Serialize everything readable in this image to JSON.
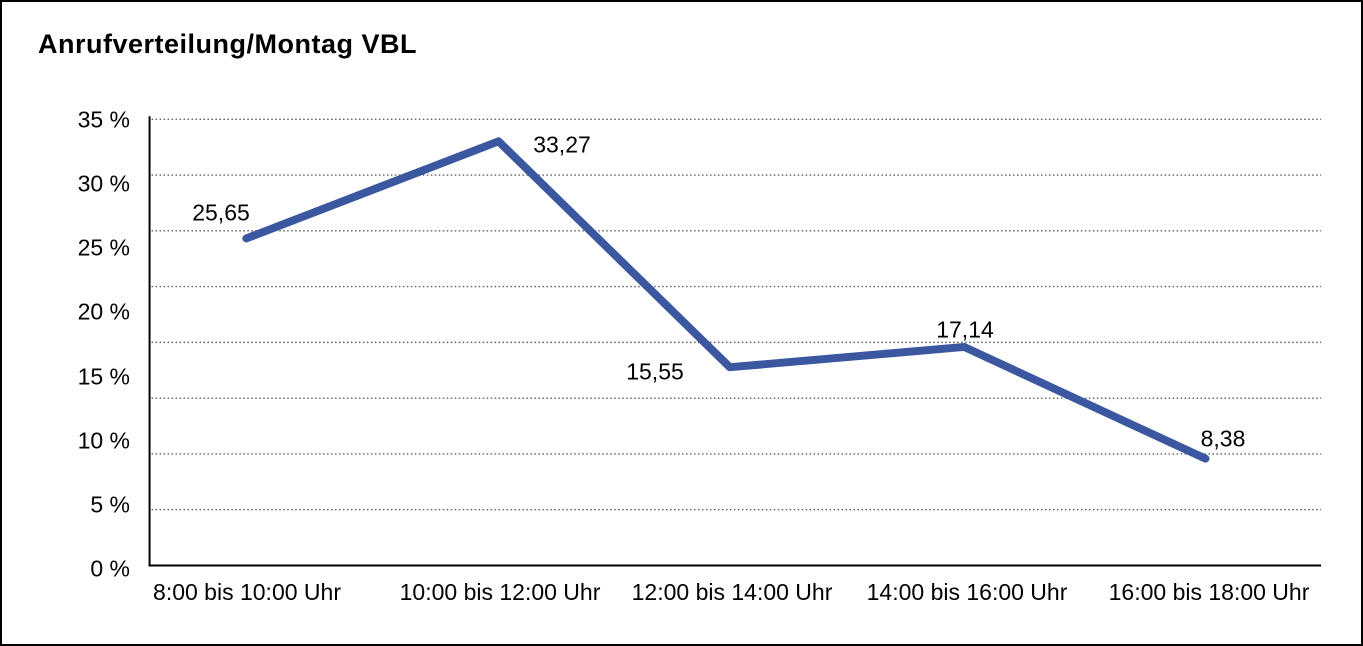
{
  "chart_data": {
    "type": "line",
    "title": "Anrufverteilung/Montag VBL",
    "categories": [
      "8:00 bis 10:00 Uhr",
      "10:00 bis 12:00 Uhr",
      "12:00 bis 14:00 Uhr",
      "14:00 bis 16:00 Uhr",
      "16:00 bis 18:00 Uhr"
    ],
    "values": [
      25.65,
      33.27,
      15.55,
      17.14,
      8.38
    ],
    "point_labels": [
      "25,65",
      "33,27",
      "15,55",
      "17,14",
      "8,38"
    ],
    "y_ticks": [
      "35 %",
      "30 %",
      "25 %",
      "20 %",
      "15 %",
      "10 %",
      "5 %",
      "0 %"
    ],
    "ylim": [
      0,
      35
    ],
    "xlabel": "",
    "ylabel": "",
    "legend": "none",
    "grid": "horizontal dotted lines, 8 equal divisions between 0 % and 35 %",
    "line_color": "#3A57A0",
    "axis_color": "#000000",
    "grid_color": "#666666",
    "background_color": "#ffffff",
    "border_color": "#000000"
  }
}
